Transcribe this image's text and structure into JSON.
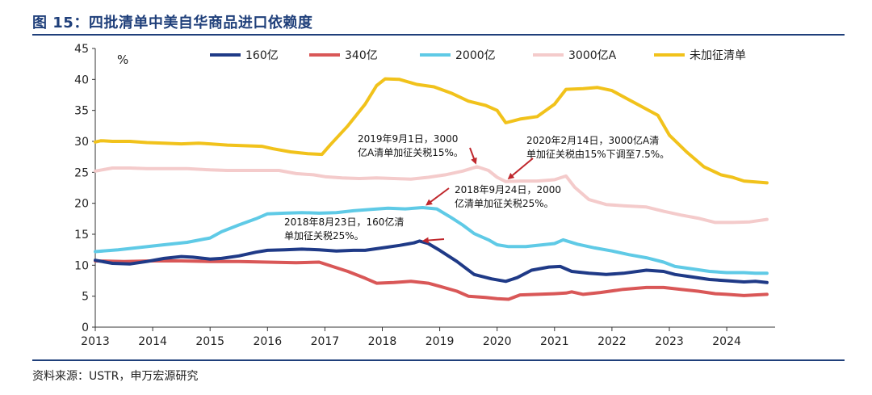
{
  "figure": {
    "title": "图 15：四批清单中美自华商品进口依赖度",
    "source": "资料来源：USTR，申万宏源研究"
  },
  "chart_data": {
    "type": "line",
    "unit_label": "%",
    "ylim": [
      0,
      45
    ],
    "yticks": [
      0,
      5,
      10,
      15,
      20,
      25,
      30,
      35,
      40,
      45
    ],
    "xlim": [
      2013.0,
      2024.75
    ],
    "xticks": [
      2013,
      2014,
      2015,
      2016,
      2017,
      2018,
      2019,
      2020,
      2021,
      2022,
      2023,
      2024
    ],
    "grid": false,
    "legend_position": "top",
    "series": [
      {
        "name": "160亿",
        "color": "#1f3a87",
        "points": [
          [
            2013.0,
            10.8
          ],
          [
            2013.3,
            10.3
          ],
          [
            2013.6,
            10.2
          ],
          [
            2013.9,
            10.6
          ],
          [
            2014.2,
            11.1
          ],
          [
            2014.5,
            11.4
          ],
          [
            2014.7,
            11.3
          ],
          [
            2015.0,
            11.0
          ],
          [
            2015.2,
            11.1
          ],
          [
            2015.5,
            11.5
          ],
          [
            2015.8,
            12.1
          ],
          [
            2016.0,
            12.4
          ],
          [
            2016.3,
            12.5
          ],
          [
            2016.6,
            12.6
          ],
          [
            2016.9,
            12.5
          ],
          [
            2017.2,
            12.3
          ],
          [
            2017.5,
            12.4
          ],
          [
            2017.7,
            12.4
          ],
          [
            2018.0,
            12.8
          ],
          [
            2018.3,
            13.2
          ],
          [
            2018.55,
            13.6
          ],
          [
            2018.65,
            13.9
          ],
          [
            2018.8,
            13.5
          ],
          [
            2019.0,
            12.4
          ],
          [
            2019.3,
            10.6
          ],
          [
            2019.6,
            8.5
          ],
          [
            2019.9,
            7.8
          ],
          [
            2020.15,
            7.4
          ],
          [
            2020.35,
            8.0
          ],
          [
            2020.6,
            9.2
          ],
          [
            2020.9,
            9.7
          ],
          [
            2021.1,
            9.8
          ],
          [
            2021.3,
            9.0
          ],
          [
            2021.6,
            8.7
          ],
          [
            2021.9,
            8.5
          ],
          [
            2022.2,
            8.7
          ],
          [
            2022.6,
            9.2
          ],
          [
            2022.9,
            9.0
          ],
          [
            2023.1,
            8.5
          ],
          [
            2023.4,
            8.1
          ],
          [
            2023.7,
            7.7
          ],
          [
            2024.0,
            7.5
          ],
          [
            2024.3,
            7.3
          ],
          [
            2024.5,
            7.4
          ],
          [
            2024.7,
            7.2
          ]
        ]
      },
      {
        "name": "340亿",
        "color": "#d95757",
        "points": [
          [
            2013.0,
            10.7
          ],
          [
            2013.5,
            10.6
          ],
          [
            2014.0,
            10.7
          ],
          [
            2014.5,
            10.7
          ],
          [
            2015.0,
            10.6
          ],
          [
            2015.5,
            10.6
          ],
          [
            2016.0,
            10.5
          ],
          [
            2016.5,
            10.4
          ],
          [
            2016.9,
            10.5
          ],
          [
            2017.1,
            9.9
          ],
          [
            2017.4,
            9.0
          ],
          [
            2017.7,
            7.9
          ],
          [
            2017.9,
            7.1
          ],
          [
            2018.2,
            7.2
          ],
          [
            2018.5,
            7.4
          ],
          [
            2018.8,
            7.1
          ],
          [
            2019.0,
            6.6
          ],
          [
            2019.3,
            5.8
          ],
          [
            2019.5,
            5.0
          ],
          [
            2019.8,
            4.8
          ],
          [
            2020.0,
            4.6
          ],
          [
            2020.2,
            4.5
          ],
          [
            2020.4,
            5.2
          ],
          [
            2020.7,
            5.3
          ],
          [
            2021.0,
            5.4
          ],
          [
            2021.2,
            5.5
          ],
          [
            2021.3,
            5.7
          ],
          [
            2021.5,
            5.3
          ],
          [
            2021.8,
            5.6
          ],
          [
            2022.2,
            6.1
          ],
          [
            2022.6,
            6.4
          ],
          [
            2022.9,
            6.4
          ],
          [
            2023.2,
            6.1
          ],
          [
            2023.5,
            5.8
          ],
          [
            2023.8,
            5.4
          ],
          [
            2024.0,
            5.3
          ],
          [
            2024.3,
            5.1
          ],
          [
            2024.5,
            5.2
          ],
          [
            2024.7,
            5.3
          ]
        ]
      },
      {
        "name": "2000亿",
        "color": "#5fcae6",
        "points": [
          [
            2013.0,
            12.2
          ],
          [
            2013.4,
            12.5
          ],
          [
            2013.8,
            12.9
          ],
          [
            2014.2,
            13.3
          ],
          [
            2014.6,
            13.7
          ],
          [
            2015.0,
            14.4
          ],
          [
            2015.2,
            15.4
          ],
          [
            2015.5,
            16.5
          ],
          [
            2015.8,
            17.5
          ],
          [
            2016.0,
            18.3
          ],
          [
            2016.3,
            18.4
          ],
          [
            2016.6,
            18.5
          ],
          [
            2016.9,
            18.4
          ],
          [
            2017.2,
            18.5
          ],
          [
            2017.5,
            18.8
          ],
          [
            2017.8,
            19.0
          ],
          [
            2018.1,
            19.2
          ],
          [
            2018.4,
            19.1
          ],
          [
            2018.7,
            19.3
          ],
          [
            2018.95,
            19.1
          ],
          [
            2019.2,
            17.7
          ],
          [
            2019.4,
            16.5
          ],
          [
            2019.6,
            15.1
          ],
          [
            2019.85,
            14.1
          ],
          [
            2020.0,
            13.3
          ],
          [
            2020.2,
            13.0
          ],
          [
            2020.5,
            13.0
          ],
          [
            2020.8,
            13.3
          ],
          [
            2021.0,
            13.5
          ],
          [
            2021.15,
            14.1
          ],
          [
            2021.4,
            13.4
          ],
          [
            2021.7,
            12.8
          ],
          [
            2022.0,
            12.3
          ],
          [
            2022.3,
            11.7
          ],
          [
            2022.6,
            11.2
          ],
          [
            2022.9,
            10.5
          ],
          [
            2023.1,
            9.8
          ],
          [
            2023.4,
            9.4
          ],
          [
            2023.7,
            9.0
          ],
          [
            2024.0,
            8.8
          ],
          [
            2024.3,
            8.8
          ],
          [
            2024.5,
            8.7
          ],
          [
            2024.7,
            8.7
          ]
        ]
      },
      {
        "name": "3000亿A",
        "color": "#f4cbcb",
        "points": [
          [
            2013.0,
            25.2
          ],
          [
            2013.3,
            25.7
          ],
          [
            2013.6,
            25.7
          ],
          [
            2013.9,
            25.6
          ],
          [
            2014.2,
            25.6
          ],
          [
            2014.6,
            25.6
          ],
          [
            2015.0,
            25.4
          ],
          [
            2015.3,
            25.3
          ],
          [
            2015.6,
            25.3
          ],
          [
            2016.0,
            25.3
          ],
          [
            2016.2,
            25.3
          ],
          [
            2016.5,
            24.8
          ],
          [
            2016.8,
            24.6
          ],
          [
            2017.0,
            24.3
          ],
          [
            2017.3,
            24.1
          ],
          [
            2017.6,
            24.0
          ],
          [
            2017.9,
            24.1
          ],
          [
            2018.2,
            24.0
          ],
          [
            2018.5,
            23.9
          ],
          [
            2018.8,
            24.2
          ],
          [
            2019.1,
            24.6
          ],
          [
            2019.4,
            25.2
          ],
          [
            2019.65,
            25.9
          ],
          [
            2019.85,
            25.3
          ],
          [
            2020.0,
            24.2
          ],
          [
            2020.15,
            23.5
          ],
          [
            2020.4,
            23.6
          ],
          [
            2020.7,
            23.6
          ],
          [
            2021.0,
            23.8
          ],
          [
            2021.2,
            24.4
          ],
          [
            2021.35,
            22.6
          ],
          [
            2021.6,
            20.6
          ],
          [
            2021.9,
            19.8
          ],
          [
            2022.2,
            19.6
          ],
          [
            2022.6,
            19.4
          ],
          [
            2022.9,
            18.7
          ],
          [
            2023.2,
            18.1
          ],
          [
            2023.5,
            17.6
          ],
          [
            2023.8,
            16.9
          ],
          [
            2024.1,
            16.9
          ],
          [
            2024.4,
            17.0
          ],
          [
            2024.7,
            17.4
          ]
        ]
      },
      {
        "name": "未加征清单",
        "color": "#f1c21b",
        "points": [
          [
            2013.0,
            29.9
          ],
          [
            2013.1,
            30.1
          ],
          [
            2013.3,
            30.0
          ],
          [
            2013.6,
            30.0
          ],
          [
            2013.9,
            29.8
          ],
          [
            2014.2,
            29.7
          ],
          [
            2014.5,
            29.6
          ],
          [
            2014.8,
            29.7
          ],
          [
            2015.0,
            29.6
          ],
          [
            2015.3,
            29.4
          ],
          [
            2015.6,
            29.3
          ],
          [
            2015.9,
            29.2
          ],
          [
            2016.1,
            28.8
          ],
          [
            2016.4,
            28.3
          ],
          [
            2016.7,
            28.0
          ],
          [
            2016.95,
            27.9
          ],
          [
            2017.1,
            29.5
          ],
          [
            2017.4,
            32.5
          ],
          [
            2017.7,
            36.0
          ],
          [
            2017.9,
            39.0
          ],
          [
            2018.05,
            40.1
          ],
          [
            2018.3,
            40.0
          ],
          [
            2018.6,
            39.2
          ],
          [
            2018.9,
            38.8
          ],
          [
            2019.2,
            37.8
          ],
          [
            2019.5,
            36.5
          ],
          [
            2019.8,
            35.8
          ],
          [
            2020.0,
            35.0
          ],
          [
            2020.15,
            33.0
          ],
          [
            2020.4,
            33.6
          ],
          [
            2020.7,
            34.0
          ],
          [
            2021.0,
            36.0
          ],
          [
            2021.2,
            38.4
          ],
          [
            2021.5,
            38.5
          ],
          [
            2021.75,
            38.7
          ],
          [
            2022.0,
            38.2
          ],
          [
            2022.3,
            36.7
          ],
          [
            2022.6,
            35.2
          ],
          [
            2022.8,
            34.2
          ],
          [
            2023.0,
            31.0
          ],
          [
            2023.3,
            28.3
          ],
          [
            2023.6,
            25.9
          ],
          [
            2023.9,
            24.6
          ],
          [
            2024.1,
            24.2
          ],
          [
            2024.3,
            23.6
          ],
          [
            2024.7,
            23.3
          ]
        ]
      }
    ],
    "annotations": [
      {
        "lines": [
          "2019年9月1日，3000",
          "亿A清单加征关税15%。"
        ],
        "target": [
          2019.65,
          25.9
        ]
      },
      {
        "lines": [
          "2020年2月14日，3000亿A清",
          "单加征关税由15%下调至7.5%。"
        ],
        "target": [
          2020.15,
          23.6
        ]
      },
      {
        "lines": [
          "2018年9月24日，2000",
          "亿清单加征关税25%。"
        ],
        "target": [
          2018.72,
          19.4
        ]
      },
      {
        "lines": [
          "2018年8月23日，160亿清",
          "单加征关税25%。"
        ],
        "target": [
          2018.65,
          13.9
        ]
      }
    ]
  }
}
